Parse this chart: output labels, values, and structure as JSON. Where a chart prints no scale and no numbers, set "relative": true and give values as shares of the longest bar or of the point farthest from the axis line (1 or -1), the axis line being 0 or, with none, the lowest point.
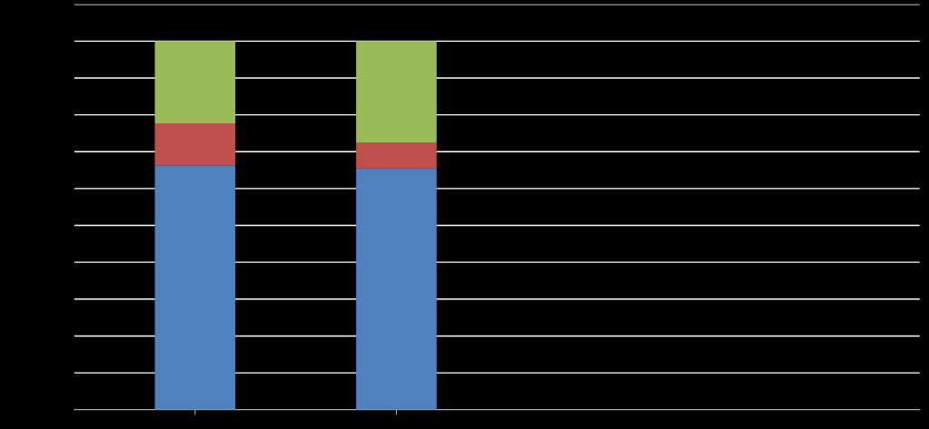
{
  "chart_data": {
    "type": "bar",
    "relative": true,
    "stacked": true,
    "grid": "y",
    "categories": [
      null,
      null
    ],
    "series": [
      {
        "color": "#4f81bd",
        "values": [
          0.663,
          0.656
        ]
      },
      {
        "color": "#c0504d",
        "values": [
          0.114,
          0.069
        ]
      },
      {
        "color": "#9bbb59",
        "values": [
          0.223,
          0.275
        ]
      }
    ]
  }
}
